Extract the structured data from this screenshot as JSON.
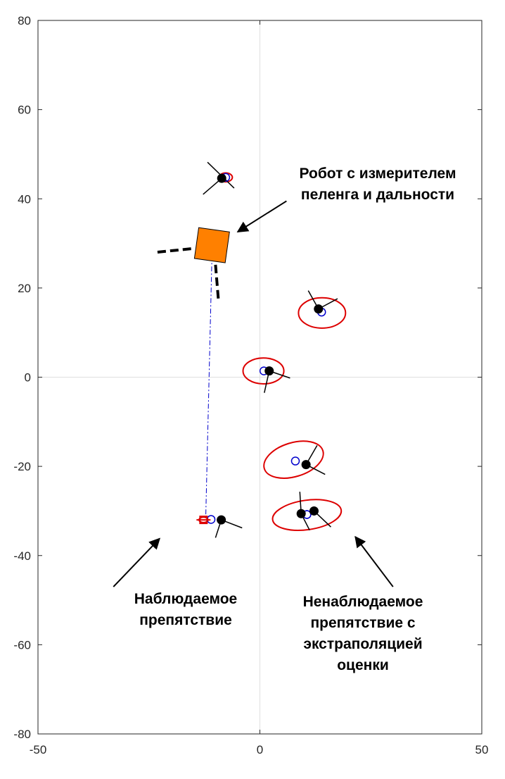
{
  "chart_data": {
    "type": "scatter",
    "title": "",
    "xlabel": "",
    "ylabel": "",
    "xlim": [
      -50,
      50
    ],
    "ylim": [
      -80,
      80
    ],
    "xticks": [
      -50,
      0,
      50
    ],
    "yticks": [
      80,
      60,
      40,
      20,
      0,
      -20,
      -40,
      -60,
      -80
    ],
    "grid": "zero-lines",
    "robot": {
      "shape": "orange-square",
      "x": -10.8,
      "y": 29.6,
      "size": 7,
      "heading_deg": 82,
      "color": "#ff8000",
      "sensor_lines": [
        {
          "from": [
            -15.5,
            28.8
          ],
          "to": [
            -23.5,
            28.0
          ]
        },
        {
          "from": [
            -10.0,
            25.2
          ],
          "to": [
            -9.3,
            16.8
          ]
        }
      ]
    },
    "observed_link": {
      "color": "#0000cc",
      "from": [
        -10.8,
        27.2
      ],
      "to": [
        -12.2,
        -31.5
      ]
    },
    "obstacles": [
      {
        "true_pos": [
          -8.6,
          44.6
        ],
        "est_pos": [
          -7.7,
          44.8
        ],
        "ellipse": {
          "center": [
            -7.7,
            44.8
          ],
          "rx": 1.5,
          "ry": 1.0,
          "angle": 0
        },
        "dir_lines": [
          [
            [
              -11.8,
              48.2
            ],
            [
              -5.8,
              42.4
            ]
          ],
          [
            [
              -12.8,
              41.0
            ],
            [
              -8.6,
              44.6
            ]
          ]
        ]
      },
      {
        "true_pos": [
          13.2,
          15.3
        ],
        "est_pos": [
          13.9,
          14.6
        ],
        "ellipse": {
          "center": [
            14.0,
            14.4
          ],
          "rx": 5.3,
          "ry": 3.4,
          "angle": 0
        },
        "dir_lines": [
          [
            [
              10.9,
              19.4
            ],
            [
              13.2,
              15.3
            ]
          ],
          [
            [
              13.2,
              15.3
            ],
            [
              17.5,
              17.6
            ]
          ]
        ]
      },
      {
        "true_pos": [
          2.1,
          1.4
        ],
        "est_pos": [
          0.9,
          1.4
        ],
        "ellipse": {
          "center": [
            0.8,
            1.4
          ],
          "rx": 4.6,
          "ry": 2.9,
          "angle": 0
        },
        "dir_lines": [
          [
            [
              2.1,
              1.4
            ],
            [
              6.8,
              -0.2
            ]
          ],
          [
            [
              2.1,
              1.4
            ],
            [
              1.0,
              -3.5
            ]
          ]
        ]
      },
      {
        "true_pos": [
          10.4,
          -19.6
        ],
        "est_pos": [
          8.0,
          -18.8
        ],
        "ellipse": {
          "center": [
            7.6,
            -18.5
          ],
          "rx": 6.9,
          "ry": 3.8,
          "angle": -17
        },
        "dir_lines": [
          [
            [
              10.4,
              -19.6
            ],
            [
              12.9,
              -15.3
            ]
          ],
          [
            [
              10.4,
              -19.6
            ],
            [
              14.7,
              -21.8
            ]
          ]
        ]
      },
      {
        "true_pos": [
          9.3,
          -30.6
        ],
        "est_pos": [
          10.6,
          -30.8
        ],
        "ellipse": {
          "center": [
            10.6,
            -30.9
          ],
          "rx": 7.8,
          "ry": 3.3,
          "angle": -8
        },
        "dir_lines": [
          [
            [
              9.0,
              -25.7
            ],
            [
              9.3,
              -30.6
            ]
          ],
          [
            [
              9.3,
              -30.6
            ],
            [
              11.2,
              -34.3
            ]
          ],
          [
            [
              12.2,
              -30.0
            ],
            [
              16.0,
              -33.6
            ]
          ]
        ]
      },
      {
        "true_pos": [
          12.2,
          -30.0
        ],
        "est_pos": [
          10.6,
          -30.8
        ],
        "ellipse": null,
        "dir_lines": []
      },
      {
        "true_pos": [
          -8.7,
          -32.0
        ],
        "est_pos": [
          -11.0,
          -31.9
        ],
        "ellipse": {
          "center": [
            -12.7,
            -32.0
          ],
          "rx": 1.0,
          "ry": 0.6,
          "angle": 0
        },
        "dir_lines": [
          [
            [
              -8.7,
              -32.0
            ],
            [
              -4.0,
              -33.8
            ]
          ],
          [
            [
              -8.7,
              -32.0
            ],
            [
              -10.0,
              -36.0
            ]
          ]
        ]
      }
    ],
    "annotations": [
      {
        "text_lines": [
          "Робот с измерителем",
          "пеленга и дальности"
        ],
        "arrow_from": [
          6.0,
          39.5
        ],
        "arrow_to": [
          -5.0,
          32.6
        ]
      },
      {
        "text_lines": [
          "Наблюдаемое",
          "препятствие"
        ],
        "arrow_from": [
          -33.0,
          -47.0
        ],
        "arrow_to": [
          -22.6,
          -36.2
        ]
      },
      {
        "text_lines": [
          "Ненаблюдаемое",
          "препятствие с",
          "экстраполяцией",
          "оценки"
        ],
        "arrow_from": [
          30.0,
          -47.0
        ],
        "arrow_to": [
          21.5,
          -35.8
        ]
      }
    ],
    "colors": {
      "true": "#000000",
      "estimate": "#0000cc",
      "ellipse": "#dd0000",
      "robot": "#ff8000",
      "axis": "#262626",
      "zero_line": "#dfdfdf"
    }
  }
}
